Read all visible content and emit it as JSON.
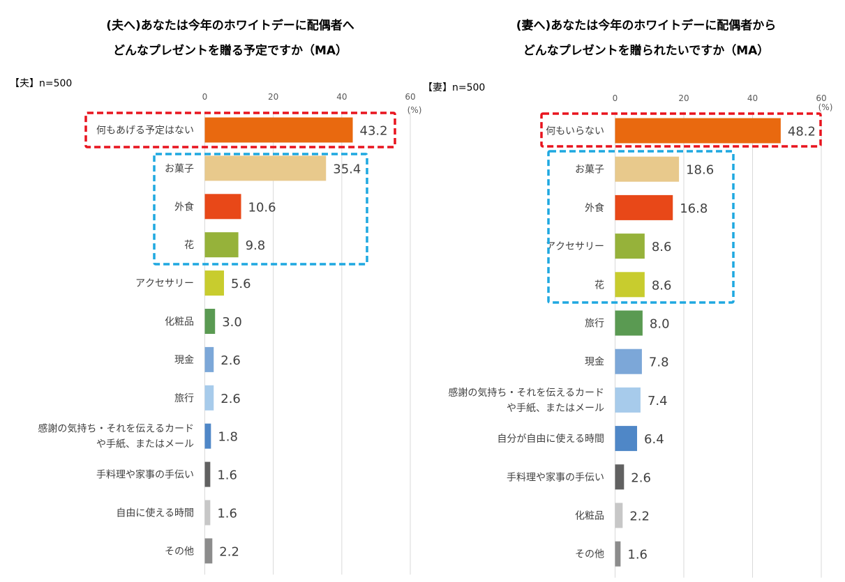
{
  "chart_data": [
    {
      "type": "bar",
      "orientation": "horizontal",
      "title_lines": [
        "(夫へ)あなたは今年のホワイトデーに配偶者へ",
        "どんなプレゼントを贈る予定ですか（MA）"
      ],
      "sample": "【夫】n=500",
      "unit": "(%)",
      "xlim": [
        0,
        60
      ],
      "ticks": [
        0,
        20,
        40,
        60
      ],
      "grid": true,
      "categories": [
        [
          "何もあげる予定はない"
        ],
        [
          "お菓子"
        ],
        [
          "外食"
        ],
        [
          "花"
        ],
        [
          "アクセサリー"
        ],
        [
          "化粧品"
        ],
        [
          "現金"
        ],
        [
          "旅行"
        ],
        [
          "感謝の気持ち・それを伝えるカード",
          "や手紙、またはメール"
        ],
        [
          "手料理や家事の手伝い"
        ],
        [
          "自由に使える時間"
        ],
        [
          "その他"
        ]
      ],
      "values": [
        43.2,
        35.4,
        10.6,
        9.8,
        5.6,
        3.0,
        2.6,
        2.6,
        1.8,
        1.6,
        1.6,
        2.2
      ],
      "labels": [
        "43.2",
        "35.4",
        "10.6",
        "9.8",
        "5.6",
        "3.0",
        "2.6",
        "2.6",
        "1.8",
        "1.6",
        "1.6",
        "2.2"
      ],
      "colors": [
        "#E9690F",
        "#E8C98C",
        "#E84818",
        "#96B23A",
        "#C8CC2E",
        "#5A9A52",
        "#7CA7D8",
        "#A7CBEB",
        "#4F87C7",
        "#616161",
        "#C7C7C7",
        "#8C8C8C"
      ],
      "highlight_red": [
        0,
        0
      ],
      "highlight_blue": [
        1,
        3
      ]
    },
    {
      "type": "bar",
      "orientation": "horizontal",
      "title_lines": [
        "(妻へ)あなたは今年のホワイトデーに配偶者から",
        "どんなプレゼントを贈られたいですか（MA）"
      ],
      "sample": "【妻】n=500",
      "unit": "(%)",
      "xlim": [
        0,
        60
      ],
      "ticks": [
        0,
        20,
        40,
        60
      ],
      "grid": true,
      "categories": [
        [
          "何もいらない"
        ],
        [
          "お菓子"
        ],
        [
          "外食"
        ],
        [
          "アクセサリー"
        ],
        [
          "花"
        ],
        [
          "旅行"
        ],
        [
          "現金"
        ],
        [
          "感謝の気持ち・それを伝えるカード",
          "や手紙、またはメール"
        ],
        [
          "自分が自由に使える時間"
        ],
        [
          "手料理や家事の手伝い"
        ],
        [
          "化粧品"
        ],
        [
          "その他"
        ]
      ],
      "values": [
        48.2,
        18.6,
        16.8,
        8.6,
        8.6,
        8.0,
        7.8,
        7.4,
        6.4,
        2.6,
        2.2,
        1.6
      ],
      "labels": [
        "48.2",
        "18.6",
        "16.8",
        "8.6",
        "8.6",
        "8.0",
        "7.8",
        "7.4",
        "6.4",
        "2.6",
        "2.2",
        "1.6"
      ],
      "colors": [
        "#E9690F",
        "#E8C98C",
        "#E84818",
        "#96B23A",
        "#C8CC2E",
        "#5A9A52",
        "#7CA7D8",
        "#A7CBEB",
        "#4F87C7",
        "#616161",
        "#C7C7C7",
        "#8C8C8C"
      ],
      "highlight_red": [
        0,
        0
      ],
      "highlight_blue": [
        1,
        4
      ]
    }
  ]
}
